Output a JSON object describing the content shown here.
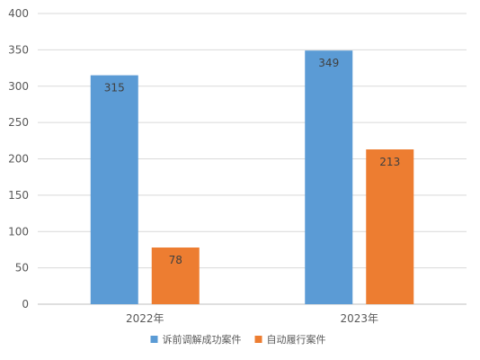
{
  "chart_data": {
    "type": "bar",
    "categories": [
      "2022年",
      "2023年"
    ],
    "series": [
      {
        "name": "诉前调解成功案件",
        "values": [
          315,
          349
        ],
        "color": "#5b9bd5"
      },
      {
        "name": "自动履行案件",
        "values": [
          78,
          213
        ],
        "color": "#ed7d31"
      }
    ],
    "yticks": [
      "0",
      "50",
      "100",
      "150",
      "200",
      "250",
      "300",
      "350",
      "400"
    ],
    "ylim": [
      0,
      400
    ],
    "grid": true,
    "legend": "bottom",
    "data_labels": true
  }
}
